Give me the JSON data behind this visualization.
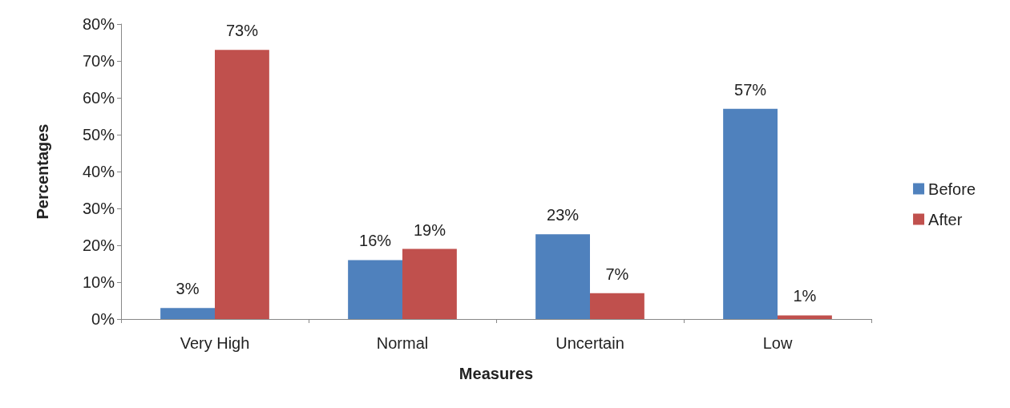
{
  "chart_data": {
    "type": "bar",
    "xlabel": "Measures",
    "ylabel": "Percentages",
    "categories": [
      "Very High",
      "Normal",
      "Uncertain",
      "Low"
    ],
    "series": [
      {
        "name": "Before",
        "color": "#4f81bd",
        "values": [
          3,
          16,
          23,
          57
        ],
        "value_labels": [
          "3%",
          "16%",
          "23%",
          "57%"
        ]
      },
      {
        "name": "After",
        "color": "#c0504d",
        "values": [
          73,
          19,
          7,
          1
        ],
        "value_labels": [
          "73%",
          "19%",
          "7%",
          "1%"
        ]
      }
    ],
    "ylim": [
      0,
      80
    ],
    "yticks": [
      {
        "value": 0,
        "label": "0%"
      },
      {
        "value": 10,
        "label": "10%"
      },
      {
        "value": 20,
        "label": "20%"
      },
      {
        "value": 30,
        "label": "30%"
      },
      {
        "value": 40,
        "label": "40%"
      },
      {
        "value": 50,
        "label": "50%"
      },
      {
        "value": 60,
        "label": "60%"
      },
      {
        "value": 70,
        "label": "70%"
      },
      {
        "value": 80,
        "label": "80%"
      }
    ],
    "grid": false,
    "legend": "right"
  }
}
